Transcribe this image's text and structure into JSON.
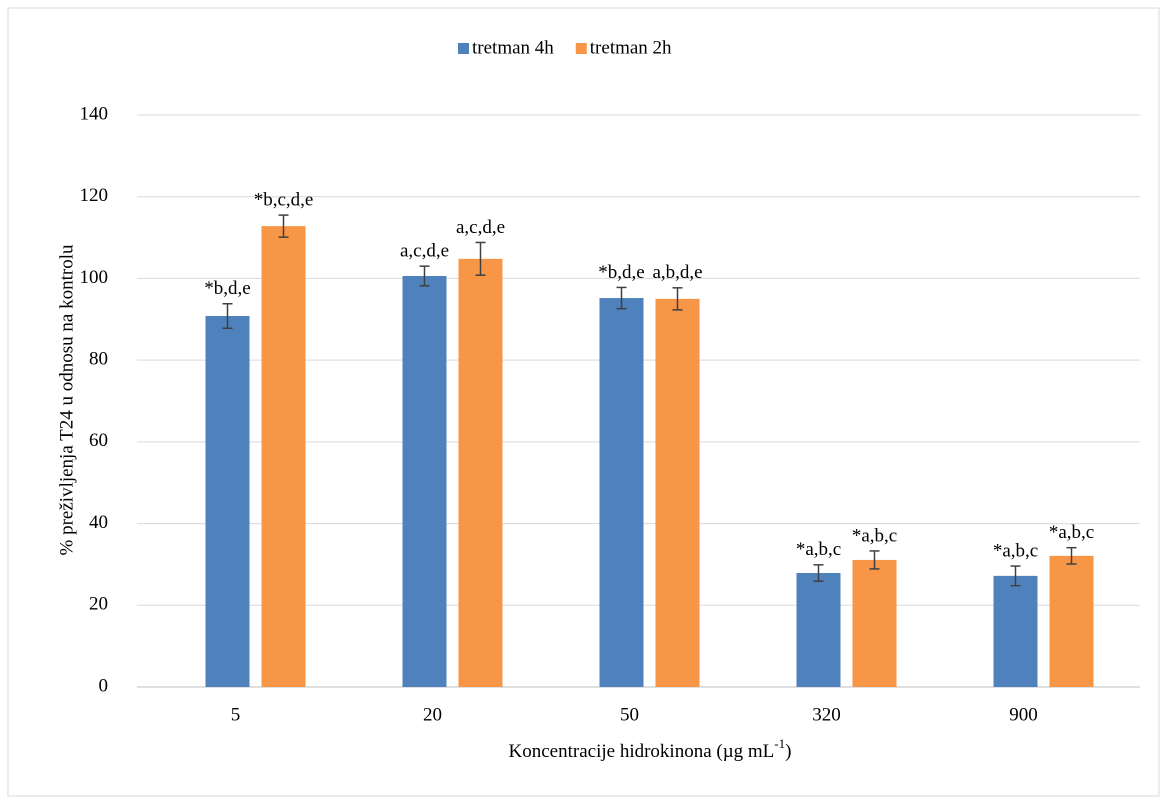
{
  "chart_data": {
    "type": "bar",
    "x_label": [
      "Koncentracije hidrokinona (µg mL",
      "-1",
      ")"
    ],
    "y_label": "% preživljenja T24 u odnosu na kontrolu",
    "categories": [
      "5",
      "20",
      "50",
      "320",
      "900"
    ],
    "series": [
      {
        "name": "tretman 4h",
        "color": "#4f81bd",
        "values": [
          90.8,
          100.6,
          95.2,
          27.9,
          27.2
        ],
        "errors": [
          3.0,
          2.4,
          2.6,
          2.0,
          2.4
        ],
        "annotations": [
          "*b,d,e",
          "a,c,d,e",
          "*b,d,e",
          "*a,b,c",
          "*a,b,c"
        ]
      },
      {
        "name": "tretman 2h",
        "color": "#f79646",
        "values": [
          112.8,
          104.8,
          95.0,
          31.1,
          32.1
        ],
        "errors": [
          2.7,
          4.0,
          2.7,
          2.2,
          2.0
        ],
        "annotations": [
          "*b,c,d,e",
          "a,c,d,e",
          "a,b,d,e",
          "*a,b,c",
          "*a,b,c"
        ]
      }
    ],
    "ylim": [
      0,
      140
    ],
    "yticks": [
      0,
      20,
      40,
      60,
      80,
      100,
      120,
      140
    ],
    "grid": true,
    "legend": "top"
  }
}
